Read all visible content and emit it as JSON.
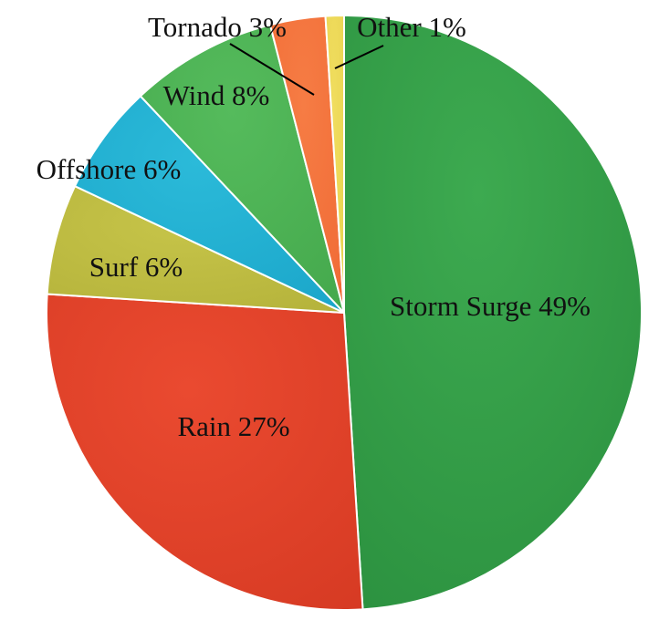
{
  "chart_data": {
    "type": "pie",
    "title": "",
    "start_angle_deg": 0,
    "direction": "clockwise",
    "slices": [
      {
        "name": "Storm Surge",
        "value": 49,
        "label": "Storm Surge 49%",
        "color": "#2a8f3e",
        "highlight": "#3daa50"
      },
      {
        "name": "Rain",
        "value": 27,
        "label": "Rain 27%",
        "color": "#d63a23",
        "highlight": "#ea4a30"
      },
      {
        "name": "Surf",
        "value": 6,
        "label": "Surf 6%",
        "color": "#b4b23a",
        "highlight": "#c6c449"
      },
      {
        "name": "Offshore",
        "value": 6,
        "label": "Offshore 6%",
        "color": "#1aa5c9",
        "highlight": "#2bbad9"
      },
      {
        "name": "Wind",
        "value": 8,
        "label": "Wind 8%",
        "color": "#44a84c",
        "highlight": "#55bb5c"
      },
      {
        "name": "Tornado",
        "value": 3,
        "label": "Tornado 3%",
        "color": "#f06a35",
        "highlight": "#f67c44"
      },
      {
        "name": "Other",
        "value": 1,
        "label": "Other 1%",
        "color": "#e8d250",
        "highlight": "#f0dd5e"
      }
    ],
    "legend": "none"
  }
}
